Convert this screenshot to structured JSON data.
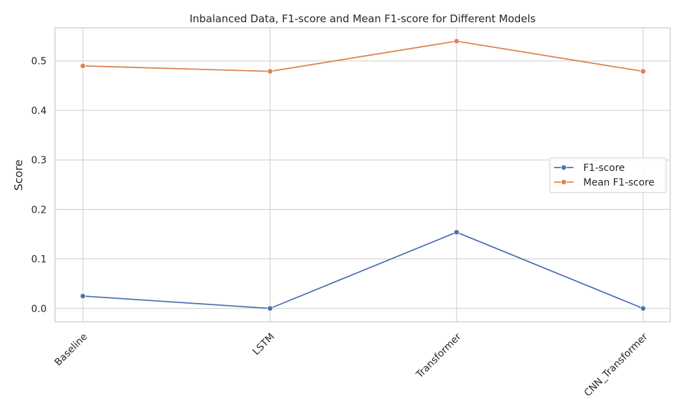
{
  "chart_data": {
    "type": "line",
    "title": "Inbalanced Data, F1-score and Mean F1-score for Different Models",
    "xlabel": "",
    "ylabel": "Score",
    "categories": [
      "Baseline",
      "LSTM",
      "Transformer",
      "CNN_Transformer"
    ],
    "ylim": [
      -0.027,
      0.567
    ],
    "yticks": [
      0.0,
      0.1,
      0.2,
      0.3,
      0.4,
      0.5
    ],
    "ytick_labels": [
      "0.0",
      "0.1",
      "0.2",
      "0.3",
      "0.4",
      "0.5"
    ],
    "grid": true,
    "legend_position": "center-right",
    "series": [
      {
        "name": "F1-score",
        "color": "#4c72b0",
        "values": [
          0.025,
          0.0,
          0.154,
          0.0
        ]
      },
      {
        "name": "Mean F1-score",
        "color": "#dd8452",
        "values": [
          0.49,
          0.479,
          0.54,
          0.479
        ]
      }
    ]
  }
}
